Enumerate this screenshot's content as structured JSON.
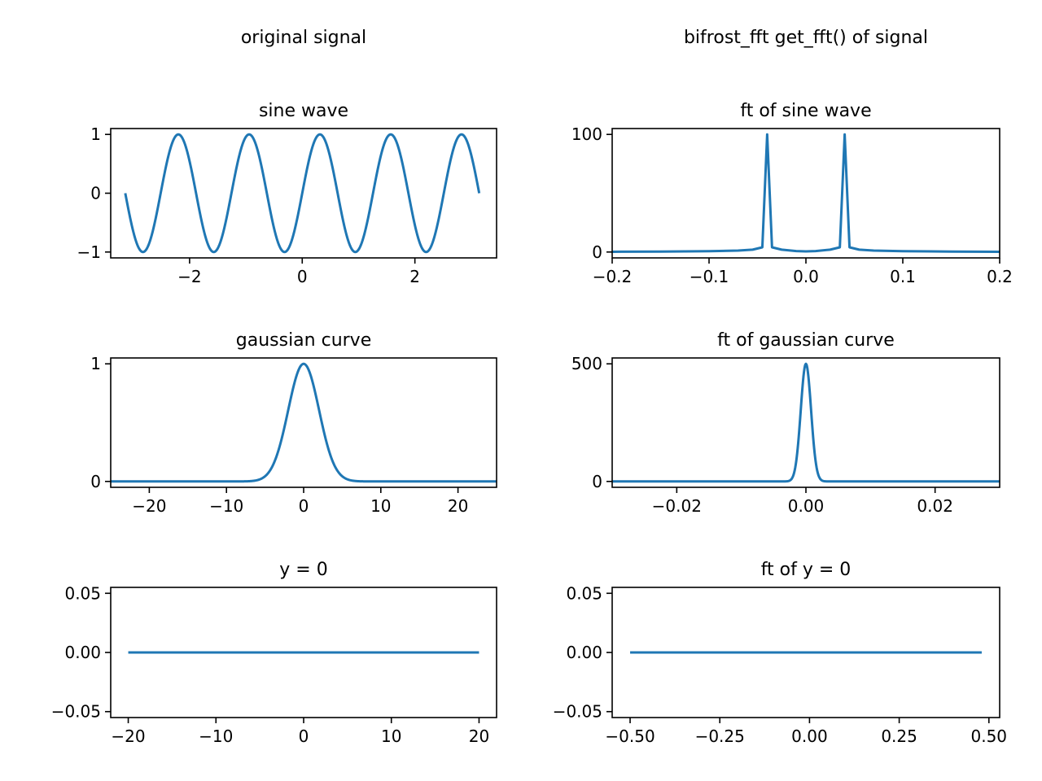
{
  "column_titles": {
    "left": "original signal",
    "right": "bifrost_fft get_fft() of signal"
  },
  "line_color": "#1f77b4",
  "chart_data": [
    {
      "id": "sine",
      "type": "line",
      "title": "sine wave",
      "xlim": [
        -3.4,
        3.45
      ],
      "ylim": [
        -1.1,
        1.1
      ],
      "xticks": [
        -2,
        0,
        2
      ],
      "xticklabels": [
        "−2",
        "0",
        "2"
      ],
      "yticks": [
        -1,
        0,
        1
      ],
      "yticklabels": [
        "−1",
        "0",
        "1"
      ],
      "series": [
        {
          "function": "sin(5*x)",
          "x_range": [
            -3.1416,
            3.1416
          ]
        }
      ]
    },
    {
      "id": "ft_sine",
      "type": "line",
      "title": "ft of sine wave",
      "xlim": [
        -0.2,
        0.2
      ],
      "ylim": [
        -5,
        105
      ],
      "xticks": [
        -0.2,
        -0.1,
        0.0,
        0.1,
        0.2
      ],
      "xticklabels": [
        "−0.2",
        "−0.1",
        "0.0",
        "0.1",
        "0.2"
      ],
      "yticks": [
        0,
        100
      ],
      "yticklabels": [
        "0",
        "100"
      ],
      "series": [
        {
          "x": [
            -0.2,
            -0.15,
            -0.1,
            -0.07,
            -0.055,
            -0.045,
            -0.04,
            -0.035,
            -0.025,
            -0.01,
            0,
            0.01,
            0.025,
            0.035,
            0.04,
            0.045,
            0.055,
            0.07,
            0.1,
            0.15,
            0.2
          ],
          "y": [
            0.2,
            0.4,
            0.7,
            1.2,
            2,
            4,
            100,
            4,
            2,
            0.8,
            0.5,
            0.8,
            2,
            4,
            100,
            4,
            2,
            1.2,
            0.7,
            0.4,
            0.2
          ]
        }
      ]
    },
    {
      "id": "gauss",
      "type": "line",
      "title": "gaussian curve",
      "xlim": [
        -25,
        25
      ],
      "ylim": [
        -0.05,
        1.05
      ],
      "xticks": [
        -20,
        -10,
        0,
        10,
        20
      ],
      "xticklabels": [
        "−20",
        "−10",
        "0",
        "10",
        "20"
      ],
      "yticks": [
        0,
        1
      ],
      "yticklabels": [
        "0",
        "1"
      ],
      "series": [
        {
          "function": "exp(-x^2/8)",
          "x_range": [
            -25,
            25
          ]
        }
      ]
    },
    {
      "id": "ft_gauss",
      "type": "line",
      "title": "ft of gaussian curve",
      "xlim": [
        -0.03,
        0.03
      ],
      "ylim": [
        -25,
        525
      ],
      "xticks": [
        -0.02,
        0.0,
        0.02
      ],
      "xticklabels": [
        "−0.02",
        "0.00",
        "0.02"
      ],
      "yticks": [
        0,
        500
      ],
      "yticklabels": [
        "0",
        "500"
      ],
      "series": [
        {
          "function": "500*exp(-x^2/(2*0.0008^2))",
          "x_range": [
            -0.03,
            0.03
          ]
        }
      ]
    },
    {
      "id": "zero",
      "type": "line",
      "title": "y = 0",
      "xlim": [
        -22,
        22
      ],
      "ylim": [
        -0.055,
        0.055
      ],
      "xticks": [
        -20,
        -10,
        0,
        10,
        20
      ],
      "xticklabels": [
        "−20",
        "−10",
        "0",
        "10",
        "20"
      ],
      "yticks": [
        -0.05,
        0.0,
        0.05
      ],
      "yticklabels": [
        "−0.05",
        "0.00",
        "0.05"
      ],
      "series": [
        {
          "x": [
            -20,
            20
          ],
          "y": [
            0,
            0
          ]
        }
      ]
    },
    {
      "id": "ft_zero",
      "type": "line",
      "title": "ft of y = 0",
      "xlim": [
        -0.55,
        0.53
      ],
      "ylim": [
        -0.055,
        0.055
      ],
      "xticks": [
        -0.5,
        -0.25,
        0.0,
        0.25,
        0.5
      ],
      "xticklabels": [
        "−0.50",
        "−0.25",
        "0.00",
        "0.25",
        "0.50"
      ],
      "yticks": [
        -0.05,
        0.0,
        0.05
      ],
      "yticklabels": [
        "−0.05",
        "0.00",
        "0.05"
      ],
      "series": [
        {
          "x": [
            -0.5,
            0.48
          ],
          "y": [
            0,
            0
          ]
        }
      ]
    }
  ]
}
